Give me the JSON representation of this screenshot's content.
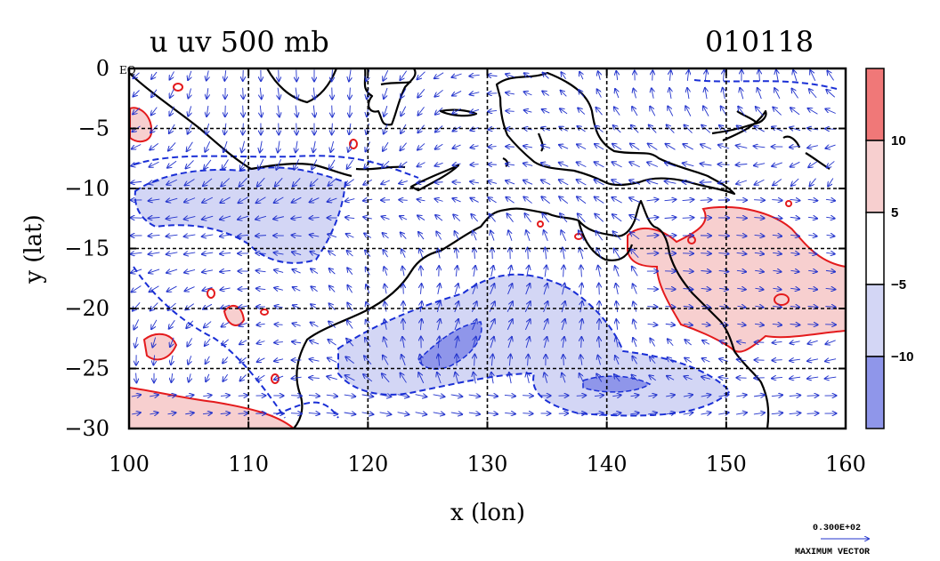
{
  "title": {
    "left": "u uv 500 mb",
    "right": "010118"
  },
  "axes": {
    "xlabel": "x (lon)",
    "ylabel": "y (lat)",
    "x_ticks": [
      "100",
      "110",
      "120",
      "130",
      "140",
      "150",
      "160"
    ],
    "y_ticks": [
      "0",
      "−5",
      "−10",
      "−15",
      "−20",
      "−25",
      "−30"
    ],
    "eq_label": "EQ",
    "xlim": [
      100,
      160
    ],
    "ylim": [
      -30,
      0
    ]
  },
  "colorbar": {
    "labels": [
      "10",
      "5",
      "−5",
      "−10"
    ],
    "colors": [
      "#f07878",
      "#f7cfcf",
      "#ffffff",
      "#d3d6f5",
      "#8f96ea"
    ]
  },
  "vector_legend": {
    "value": "0.300E+02",
    "caption": "MAXIMUM VECTOR"
  },
  "colors": {
    "positive_contour": "#e41a1c",
    "negative_contour": "#1a2fd6",
    "positive_fill": "#f7cfcf",
    "negative_fill": "#d3d6f5",
    "strong_negative_fill": "#8f96ea",
    "strong_positive_fill": "#f07878",
    "vector": "#2233cc",
    "coast": "#000000"
  }
}
